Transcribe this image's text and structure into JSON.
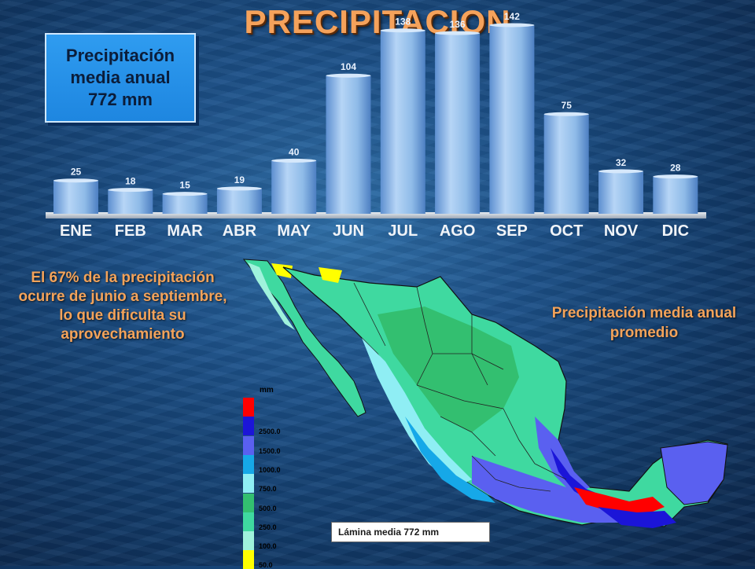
{
  "title": "PRECIPITACION",
  "annual_box": {
    "line1": "Precipitación",
    "line2": "media anual",
    "line3": "772 mm"
  },
  "chart_data": {
    "type": "bar",
    "title": "",
    "xlabel": "",
    "ylabel": "",
    "categories": [
      "ENE",
      "FEB",
      "MAR",
      "ABR",
      "MAY",
      "JUN",
      "JUL",
      "AGO",
      "SEP",
      "OCT",
      "NOV",
      "DIC"
    ],
    "values": [
      25,
      18,
      15,
      19,
      40,
      104,
      138,
      136,
      142,
      75,
      32,
      28
    ],
    "ylim": [
      0,
      155
    ],
    "grid": false,
    "bar_color": "#8fbbe8",
    "base_color": "#c9d2dc"
  },
  "left_text": "El 67% de la precipitación ocurre de junio a septiembre, lo que dificulta su aprovechamiento",
  "map_title": "Precipitación media anual promedio",
  "legend": {
    "unit": "mm",
    "items": [
      {
        "label": "",
        "color": "#ff0000"
      },
      {
        "label": "2500.0",
        "color": "#1b15d8"
      },
      {
        "label": "1500.0",
        "color": "#5a60f0"
      },
      {
        "label": "1000.0",
        "color": "#16a8e8"
      },
      {
        "label": "750.0",
        "color": "#8feef4"
      },
      {
        "label": "500.0",
        "color": "#33bf70"
      },
      {
        "label": "250.0",
        "color": "#3fd9a0"
      },
      {
        "label": "100.0",
        "color": "#9ff2dc"
      },
      {
        "label": "50.0",
        "color": "#ffff00"
      }
    ]
  },
  "lamina": "Lámina media  772 mm"
}
